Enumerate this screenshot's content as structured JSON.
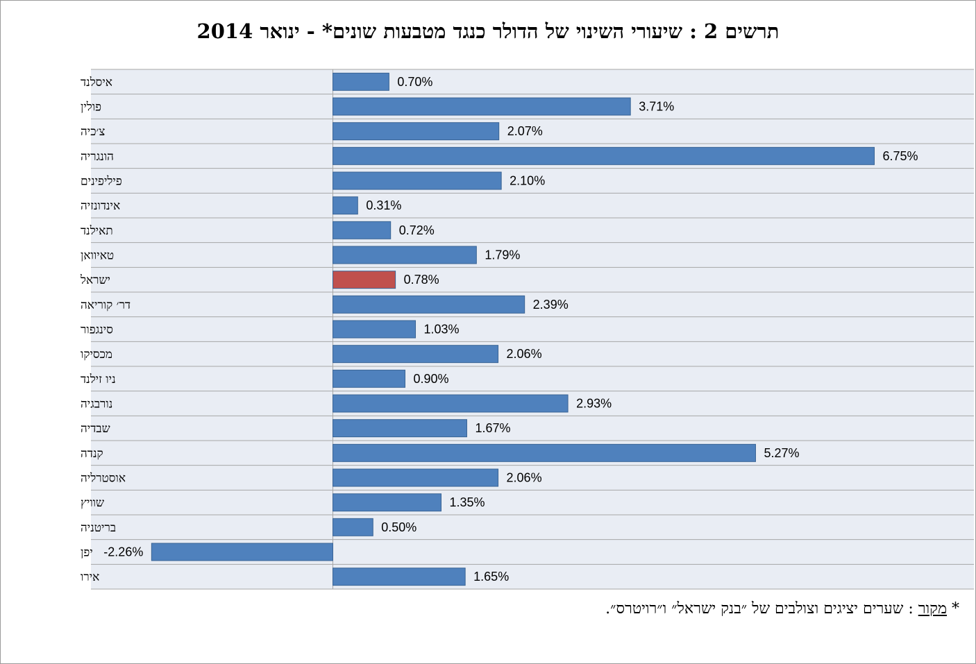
{
  "chart_data": {
    "type": "bar",
    "orientation": "horizontal",
    "title": "תרשים 2 : שיעורי השינוי של הדולר כנגד מטבעות שונים* - ינואר 2014",
    "categories": [
      "איסלנד",
      "פולין",
      "צ׳כיה",
      "הונגריה",
      "פיליפינים",
      "אינדונזיה",
      "תאילנד",
      "טאיוואן",
      "ישראל",
      "דר׳ קוריאה",
      "סינגפור",
      "מכסיקו",
      "ניו זילנד",
      "נורבגיה",
      "שבדיה",
      "קנדה",
      "אוסטרליה",
      "שוויץ",
      "בריטניה",
      "יפן",
      "אירו"
    ],
    "values": [
      0.7,
      3.71,
      2.07,
      6.75,
      2.1,
      0.31,
      0.72,
      1.79,
      0.78,
      2.39,
      1.03,
      2.06,
      0.9,
      2.93,
      1.67,
      5.27,
      2.06,
      1.35,
      0.5,
      -2.26,
      1.65
    ],
    "value_labels": [
      "0.70%",
      "3.71%",
      "2.07%",
      "6.75%",
      "2.10%",
      "0.31%",
      "0.72%",
      "1.79%",
      "0.78%",
      "2.39%",
      "1.03%",
      "2.06%",
      "0.90%",
      "2.93%",
      "1.67%",
      "5.27%",
      "2.06%",
      "1.35%",
      "0.50%",
      "-2.26%",
      "1.65%"
    ],
    "xlim": [
      -3.0,
      7.5
    ],
    "unit": "%",
    "highlight_category": "ישראל",
    "colors": {
      "bar": "#4f81bd",
      "highlight": "#c0504d",
      "plot_background": "#e9edf4",
      "gridline": "#a6a6a6",
      "bar_border": "#3a6494"
    },
    "grid": true,
    "legend": "none"
  },
  "footnote": {
    "star": "*",
    "source_label": "מקור",
    "text": ": שערים יציגים וצולבים של ״בנק ישראל״ ו״רויטרס״."
  }
}
